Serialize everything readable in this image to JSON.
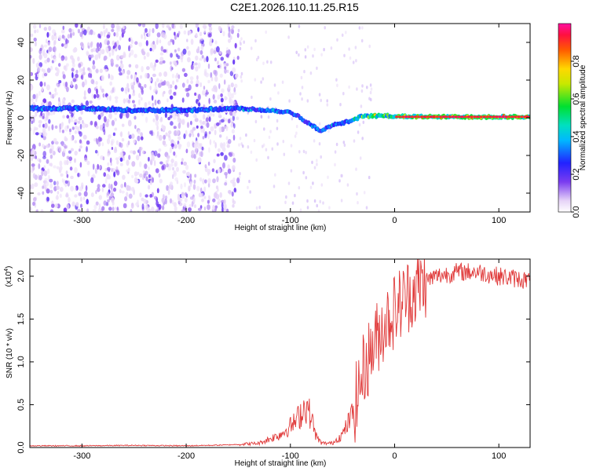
{
  "chart_data": [
    {
      "type": "heatmap",
      "title": "C2E1.2026.110.11.25.R15",
      "xlabel": "Height of straight line (km)",
      "ylabel": "Frequency (Hz)",
      "xlim": [
        -350,
        130
      ],
      "ylim": [
        -50,
        50
      ],
      "xticks": [
        -300,
        -200,
        -100,
        0,
        100
      ],
      "yticks": [
        -40,
        -20,
        0,
        20,
        40
      ],
      "colorbar": {
        "label": "Normalized spectral amplitude",
        "range": [
          0,
          1
        ],
        "ticks": [
          "0.0",
          "0.2",
          "0.4",
          "0.6",
          "0.8"
        ]
      },
      "tone_track": {
        "x": [
          -350,
          -300,
          -250,
          -200,
          -150,
          -120,
          -100,
          -90,
          -80,
          -70,
          -60,
          -50,
          -40,
          -30,
          -20,
          -10,
          0,
          20,
          50,
          100,
          130
        ],
        "frequency": [
          5,
          5,
          4,
          4,
          5,
          4,
          3,
          0,
          -4,
          -7,
          -4,
          -3,
          -1,
          1,
          1,
          1,
          1,
          0.5,
          0.5,
          0.5,
          0.5
        ]
      },
      "grid": false
    },
    {
      "type": "line",
      "xlabel": "Height of straight line (km)",
      "ylabel": "SNR (10 * v/v)",
      "y_multiplier": "(x10",
      "y_multiplier_exp": "4",
      "y_multiplier_close": ")",
      "xlim": [
        -350,
        130
      ],
      "ylim": [
        0,
        2.2
      ],
      "xticks": [
        -300,
        -200,
        -100,
        0,
        100
      ],
      "yticks": [
        "0.0",
        "0.5",
        "1.0",
        "1.5",
        "2.0"
      ],
      "series": [
        {
          "color": "#e03a3a",
          "x": [
            -350,
            -300,
            -250,
            -200,
            -160,
            -130,
            -110,
            -95,
            -85,
            -80,
            -75,
            -70,
            -60,
            -50,
            -40,
            -30,
            -20,
            -10,
            0,
            10,
            20,
            30,
            40,
            60,
            80,
            100,
            130
          ],
          "y": [
            0.02,
            0.02,
            0.025,
            0.02,
            0.03,
            0.05,
            0.15,
            0.3,
            0.5,
            0.35,
            0.12,
            0.05,
            0.05,
            0.15,
            0.4,
            0.9,
            1.2,
            1.45,
            1.6,
            1.75,
            1.85,
            1.95,
            2.0,
            2.05,
            2.05,
            2.0,
            1.95
          ]
        }
      ],
      "grid": false
    }
  ]
}
